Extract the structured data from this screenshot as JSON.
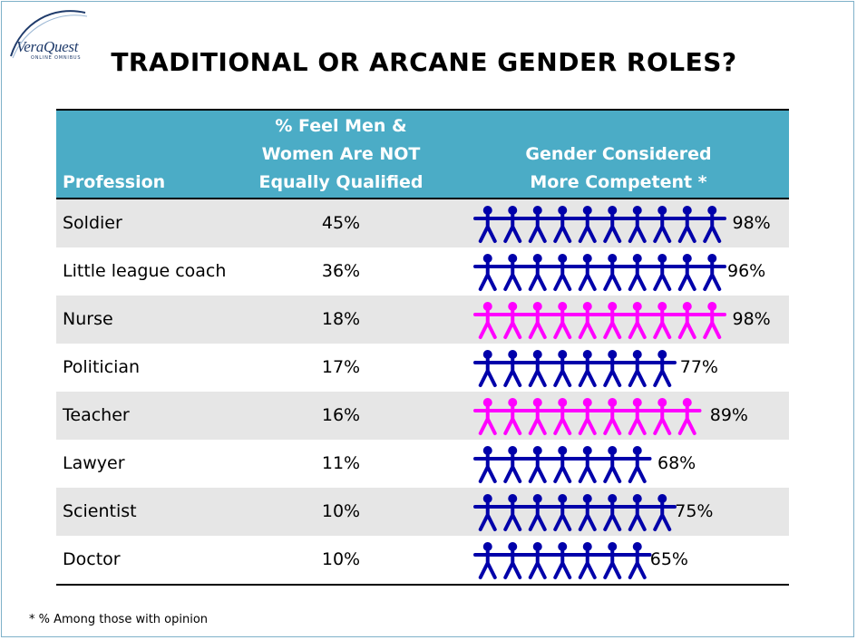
{
  "logo": {
    "text": "VeraQuest",
    "subtext": "ONLINE OMNIBUS"
  },
  "title": "TRADITIONAL OR ARCANE GENDER ROLES?",
  "colors": {
    "header_bg": "#4bacc6",
    "male": "#0000aa",
    "female": "#ff00ff",
    "shade": "#e6e6e6"
  },
  "footnote": "*  % Among those with opinion",
  "chart_data": {
    "type": "table",
    "title": "TRADITIONAL OR ARCANE GENDER ROLES?",
    "columns": [
      "Profession",
      "% Feel Men & Women Are NOT Equally Qualified",
      "Gender Considered More Competent *"
    ],
    "header_lines": {
      "profession": "Profession",
      "pct": [
        "% Feel Men &",
        "Women Are NOT",
        "Equally Qualified"
      ],
      "gender": [
        "Gender Considered",
        "More Competent *"
      ]
    },
    "rows": [
      {
        "profession": "Soldier",
        "not_equal_pct": "45%",
        "gender": "male",
        "competent_pct": "98%",
        "competent_value": 98
      },
      {
        "profession": "Little league coach",
        "not_equal_pct": "36%",
        "gender": "male",
        "competent_pct": "96%",
        "competent_value": 96
      },
      {
        "profession": "Nurse",
        "not_equal_pct": "18%",
        "gender": "female",
        "competent_pct": "98%",
        "competent_value": 98
      },
      {
        "profession": "Politician",
        "not_equal_pct": "17%",
        "gender": "male",
        "competent_pct": "77%",
        "competent_value": 77
      },
      {
        "profession": "Teacher",
        "not_equal_pct": "16%",
        "gender": "female",
        "competent_pct": "89%",
        "competent_value": 89
      },
      {
        "profession": "Lawyer",
        "not_equal_pct": "11%",
        "gender": "male",
        "competent_pct": "68%",
        "competent_value": 68
      },
      {
        "profession": "Scientist",
        "not_equal_pct": "10%",
        "gender": "male",
        "competent_pct": "75%",
        "competent_value": 75
      },
      {
        "profession": "Doctor",
        "not_equal_pct": "10%",
        "gender": "male",
        "competent_pct": "65%",
        "competent_value": 65
      }
    ]
  }
}
